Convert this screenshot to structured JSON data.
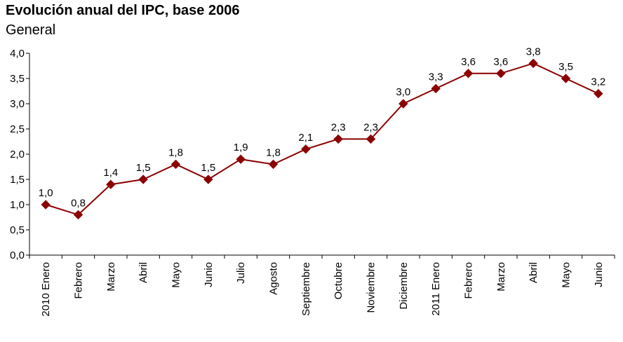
{
  "chart_data": {
    "type": "line",
    "title": "Evolución anual del IPC, base 2006",
    "subtitle": "General",
    "xlabel": "",
    "ylabel": "",
    "categories": [
      "2010 Enero",
      "Febrero",
      "Marzo",
      "Abril",
      "Mayo",
      "Junio",
      "Julio",
      "Agosto",
      "Septiembre",
      "Octubre",
      "Noviembre",
      "Diciembre",
      "2011 Enero",
      "Febrero",
      "Marzo",
      "Abril",
      "Mayo",
      "Junio"
    ],
    "series": [
      {
        "values": [
          1.0,
          0.8,
          1.4,
          1.5,
          1.8,
          1.5,
          1.9,
          1.8,
          2.1,
          2.3,
          2.3,
          3.0,
          3.3,
          3.6,
          3.6,
          3.8,
          3.5,
          3.2
        ],
        "data_labels": [
          "1,0",
          "0,8",
          "1,4",
          "1,5",
          "1,8",
          "1,5",
          "1,9",
          "1,8",
          "2,1",
          "2,3",
          "2,3",
          "3,0",
          "3,3",
          "3,6",
          "3,6",
          "3,8",
          "3,5",
          "3,2"
        ],
        "color": "#8b0000",
        "marker": "diamond"
      }
    ],
    "ylim": [
      0,
      4
    ],
    "yticks": [
      0,
      0.5,
      1,
      1.5,
      2,
      2.5,
      3,
      3.5,
      4
    ],
    "ytick_labels": [
      "0,0",
      "0,5",
      "1,0",
      "1,5",
      "2,0",
      "2,5",
      "3,0",
      "3,5",
      "4,0"
    ],
    "grid": false,
    "legend": "none"
  }
}
